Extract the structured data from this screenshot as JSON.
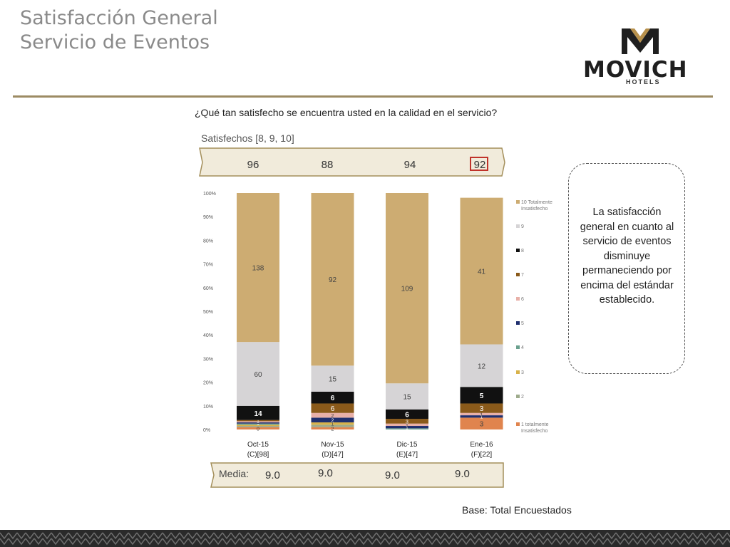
{
  "header": {
    "title_line1": "Satisfacción General",
    "title_line2": "Servicio de Eventos",
    "brand_name": "MOVICH",
    "brand_sub": "HOTELS"
  },
  "question": "¿Qué tan satisfecho se encuentra usted en la calidad en el servicio?",
  "satisfied": {
    "label": "Satisfechos [8, 9, 10]",
    "values": [
      "96",
      "88",
      "94",
      "92"
    ]
  },
  "media": {
    "label": "Media:",
    "values": [
      "9.0",
      "9.0",
      "9.0",
      "9.0"
    ]
  },
  "callout": "La satisfacción general en cuanto al servicio de eventos disminuye permaneciendo por encima del estándar establecido.",
  "base_note": "Base: Total Encuestados",
  "colors": {
    "accent": "#9c8b63",
    "highlight_border": "#c0322a"
  },
  "chart_data": {
    "type": "bar",
    "stacked": true,
    "normalized": true,
    "categories": [
      "Oct-15",
      "Nov-15",
      "Dic-15",
      "Ene-16"
    ],
    "category_sublabels": [
      "(C)[98]",
      "(D)[47]",
      "(E)[47]",
      "(F)[22]"
    ],
    "ylim": [
      0,
      100
    ],
    "yticks": [
      "0%",
      "10%",
      "20%",
      "30%",
      "40%",
      "50%",
      "60%",
      "70%",
      "80%",
      "90%",
      "100%"
    ],
    "grid": false,
    "legend_position": "right",
    "series": [
      {
        "name": "1 totalmente Insatisfecho",
        "color": "#e0844e",
        "percents": [
          1,
          1,
          0,
          5
        ],
        "labels": [
          "0",
          "2",
          "",
          "3"
        ]
      },
      {
        "name": "2",
        "color": "#9eab8c",
        "percents": [
          0.5,
          1,
          0,
          0
        ],
        "labels": [
          "",
          "",
          "",
          ""
        ]
      },
      {
        "name": "3",
        "color": "#d8b24a",
        "percents": [
          0.5,
          1,
          0,
          0
        ],
        "labels": [
          "",
          "1",
          "",
          ""
        ]
      },
      {
        "name": "4",
        "color": "#6aa08e",
        "percents": [
          0.5,
          0,
          0.5,
          0
        ],
        "labels": [
          "",
          "",
          "",
          ""
        ]
      },
      {
        "name": "5",
        "color": "#1f2f6e",
        "percents": [
          0.5,
          2,
          1,
          1
        ],
        "labels": [
          "1",
          "2",
          "1",
          "1"
        ]
      },
      {
        "name": "6",
        "color": "#e8b0a8",
        "percents": [
          0.5,
          2,
          1,
          1
        ],
        "labels": [
          "1",
          "2",
          "1",
          "1"
        ]
      },
      {
        "name": "7",
        "color": "#8a5a1a",
        "percents": [
          0.5,
          4,
          2,
          4
        ],
        "labels": [
          "1",
          "6",
          "3",
          "3"
        ]
      },
      {
        "name": "8",
        "color": "#111111",
        "percents": [
          6,
          5,
          4,
          7
        ],
        "labels": [
          "14",
          "6",
          "6",
          "5"
        ]
      },
      {
        "name": "9",
        "color": "#d6d4d6",
        "percents": [
          27,
          11,
          11,
          18
        ],
        "labels": [
          "60",
          "15",
          "15",
          "12"
        ]
      },
      {
        "name": "10 Totalmente Insatisfecho",
        "color": "#cdac72",
        "percents": [
          63,
          73,
          80.5,
          62
        ],
        "labels": [
          "138",
          "92",
          "109",
          "41"
        ]
      }
    ]
  }
}
